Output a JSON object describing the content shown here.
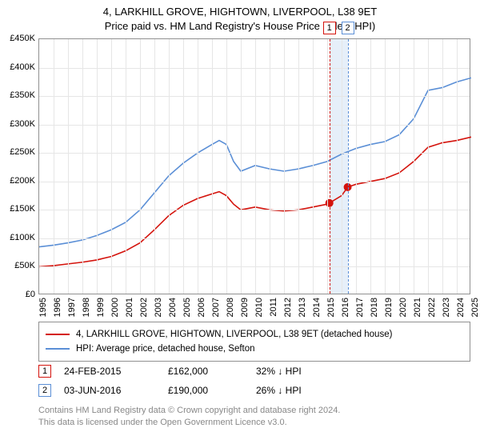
{
  "title_line1": "4, LARKHILL GROVE, HIGHTOWN, LIVERPOOL, L38 9ET",
  "title_line2": "Price paid vs. HM Land Registry's House Price Index (HPI)",
  "chart": {
    "type": "line",
    "background_color": "#ffffff",
    "grid_color": "#e6e6e6",
    "border_color": "#909090",
    "ylim": [
      0,
      450000
    ],
    "ytick_step": 50000,
    "yticks": [
      "£0",
      "£50K",
      "£100K",
      "£150K",
      "£200K",
      "£250K",
      "£300K",
      "£350K",
      "£400K",
      "£450K"
    ],
    "xlim": [
      1995,
      2025
    ],
    "xticks": [
      1995,
      1996,
      1997,
      1998,
      1999,
      2000,
      2001,
      2002,
      2003,
      2004,
      2005,
      2006,
      2007,
      2008,
      2009,
      2010,
      2011,
      2012,
      2013,
      2014,
      2015,
      2016,
      2017,
      2018,
      2019,
      2020,
      2021,
      2022,
      2023,
      2024,
      2025
    ],
    "line_width": 1.6,
    "series": [
      {
        "name": "price_paid",
        "color": "#d4130c",
        "marker": "circle",
        "marker_size": 5,
        "values": [
          [
            1995,
            50000
          ],
          [
            1996,
            52000
          ],
          [
            1997,
            55000
          ],
          [
            1998,
            58000
          ],
          [
            1999,
            62000
          ],
          [
            2000,
            68000
          ],
          [
            2001,
            78000
          ],
          [
            2002,
            92000
          ],
          [
            2003,
            115000
          ],
          [
            2004,
            140000
          ],
          [
            2005,
            158000
          ],
          [
            2006,
            170000
          ],
          [
            2007,
            178000
          ],
          [
            2007.5,
            182000
          ],
          [
            2008,
            175000
          ],
          [
            2008.5,
            160000
          ],
          [
            2009,
            150000
          ],
          [
            2010,
            155000
          ],
          [
            2011,
            150000
          ],
          [
            2012,
            148000
          ],
          [
            2013,
            150000
          ],
          [
            2014,
            155000
          ],
          [
            2015,
            160000
          ],
          [
            2015.15,
            162000
          ],
          [
            2016,
            175000
          ],
          [
            2016.42,
            190000
          ],
          [
            2017,
            195000
          ],
          [
            2018,
            200000
          ],
          [
            2019,
            205000
          ],
          [
            2020,
            215000
          ],
          [
            2021,
            235000
          ],
          [
            2022,
            260000
          ],
          [
            2023,
            268000
          ],
          [
            2024,
            272000
          ],
          [
            2025,
            278000
          ]
        ],
        "markers_at": [
          [
            2015.15,
            162000
          ],
          [
            2016.42,
            190000
          ]
        ]
      },
      {
        "name": "hpi",
        "color": "#5b8fd6",
        "values": [
          [
            1995,
            85000
          ],
          [
            1996,
            88000
          ],
          [
            1997,
            92000
          ],
          [
            1998,
            97000
          ],
          [
            1999,
            105000
          ],
          [
            2000,
            115000
          ],
          [
            2001,
            128000
          ],
          [
            2002,
            150000
          ],
          [
            2003,
            180000
          ],
          [
            2004,
            210000
          ],
          [
            2005,
            232000
          ],
          [
            2006,
            250000
          ],
          [
            2007,
            265000
          ],
          [
            2007.5,
            272000
          ],
          [
            2008,
            265000
          ],
          [
            2008.5,
            235000
          ],
          [
            2009,
            218000
          ],
          [
            2010,
            228000
          ],
          [
            2011,
            222000
          ],
          [
            2012,
            218000
          ],
          [
            2013,
            222000
          ],
          [
            2014,
            228000
          ],
          [
            2015,
            235000
          ],
          [
            2016,
            248000
          ],
          [
            2017,
            258000
          ],
          [
            2018,
            265000
          ],
          [
            2019,
            270000
          ],
          [
            2020,
            282000
          ],
          [
            2021,
            310000
          ],
          [
            2022,
            360000
          ],
          [
            2023,
            365000
          ],
          [
            2024,
            375000
          ],
          [
            2025,
            382000
          ]
        ]
      }
    ],
    "highlight_band": {
      "xstart": 2015.15,
      "xend": 2016.42,
      "color": "#d6e4f5"
    },
    "highlight_lines": [
      {
        "x": 2015.15,
        "color": "#d4130c"
      },
      {
        "x": 2016.42,
        "color": "#5b8fd6"
      }
    ],
    "number_boxes": [
      {
        "label": "1",
        "x": 2015.15,
        "color": "#d4130c"
      },
      {
        "label": "2",
        "x": 2016.42,
        "color": "#5b8fd6"
      }
    ]
  },
  "legend": {
    "items": [
      {
        "color": "#d4130c",
        "label": "4, LARKHILL GROVE, HIGHTOWN, LIVERPOOL, L38 9ET (detached house)"
      },
      {
        "color": "#5b8fd6",
        "label": "HPI: Average price, detached house, Sefton"
      }
    ]
  },
  "transactions": [
    {
      "n": "1",
      "box_color": "#d4130c",
      "date": "24-FEB-2015",
      "price": "£162,000",
      "delta": "32% ↓ HPI"
    },
    {
      "n": "2",
      "box_color": "#5b8fd6",
      "date": "03-JUN-2016",
      "price": "£190,000",
      "delta": "26% ↓ HPI"
    }
  ],
  "footnote_line1": "Contains HM Land Registry data © Crown copyright and database right 2024.",
  "footnote_line2": "This data is licensed under the Open Government Licence v3.0.",
  "label_fontsize": 11,
  "title_fontsize": 13
}
